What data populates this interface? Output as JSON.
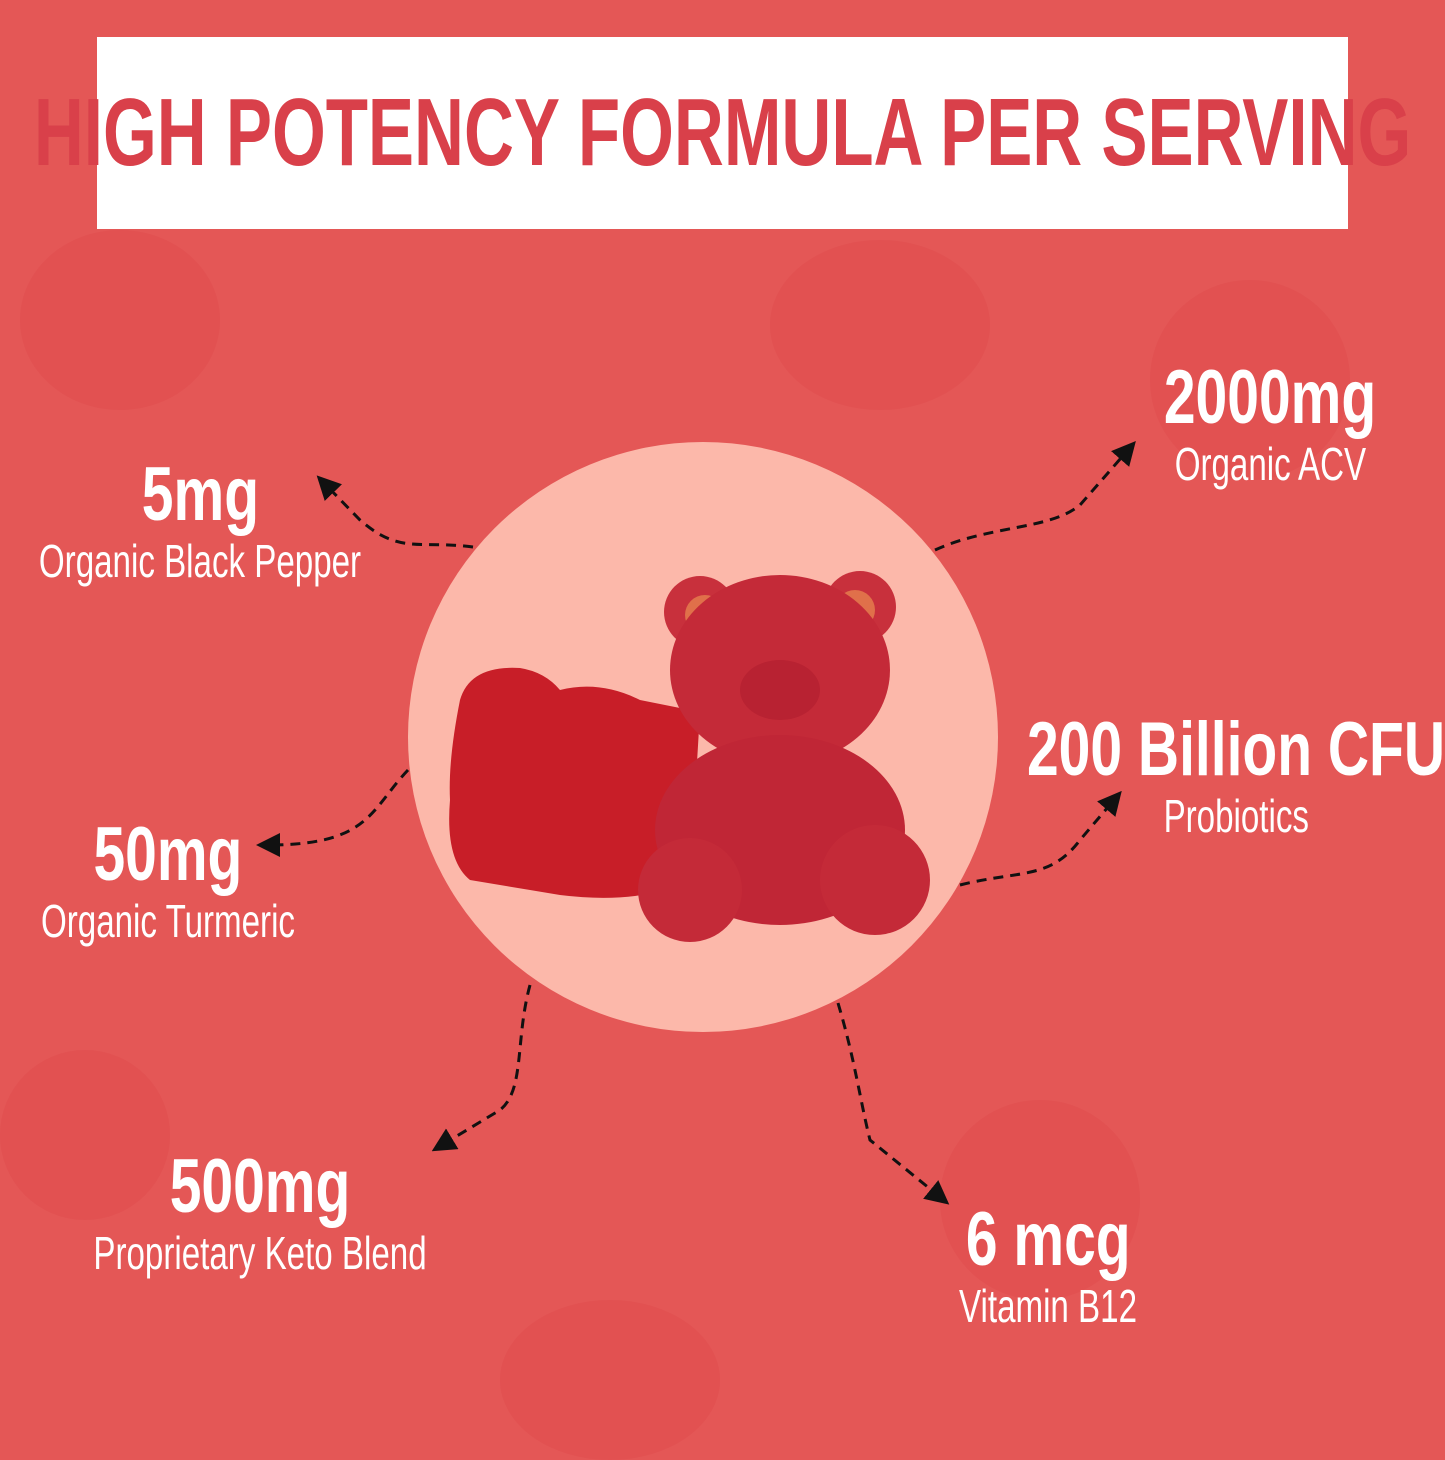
{
  "title": "HIGH POTENCY FORMULA PER SERVING",
  "colors": {
    "background": "#e45756",
    "title_text": "#d9404a",
    "circle": "#fcb8aa",
    "gummy": "#c8283a"
  },
  "image": "gummy-bears",
  "ingredients": [
    {
      "amount": "5mg",
      "name": "Organic Black Pepper"
    },
    {
      "amount": "2000mg",
      "name": "Organic ACV"
    },
    {
      "amount": "200 Billion CFU",
      "name": "Probiotics"
    },
    {
      "amount": "50mg",
      "name": "Organic Turmeric"
    },
    {
      "amount": "500mg",
      "name": "Proprietary Keto Blend"
    },
    {
      "amount": "6 mcg",
      "name": "Vitamin B12"
    }
  ]
}
